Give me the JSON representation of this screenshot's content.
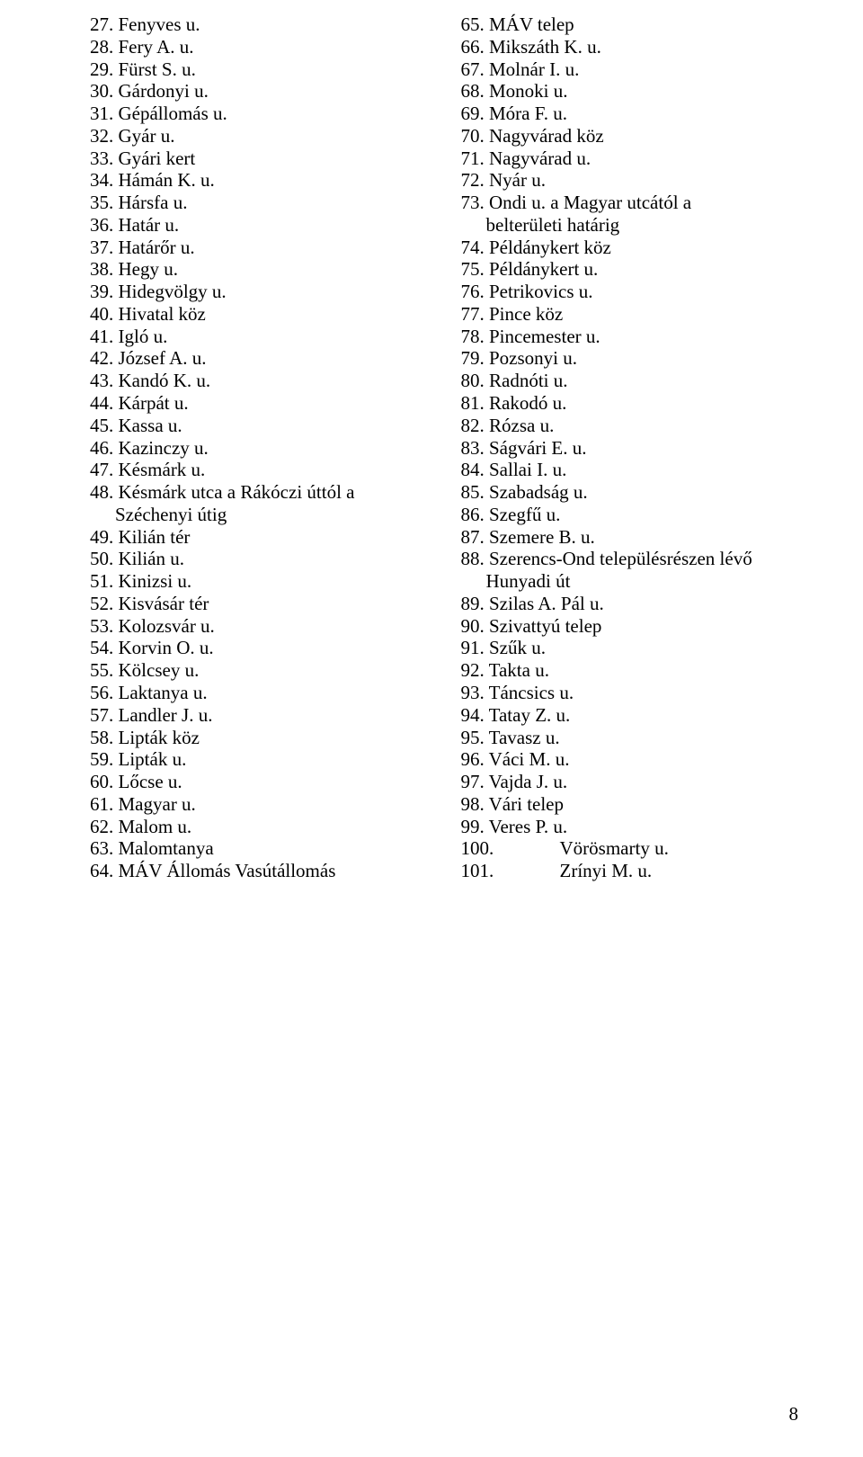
{
  "left_column": [
    {
      "num": "27.",
      "text": "Fenyves u."
    },
    {
      "num": "28.",
      "text": "Fery A. u."
    },
    {
      "num": "29.",
      "text": "Fürst S. u."
    },
    {
      "num": "30.",
      "text": "Gárdonyi u."
    },
    {
      "num": "31.",
      "text": "Gépállomás u."
    },
    {
      "num": "32.",
      "text": "Gyár u."
    },
    {
      "num": "33.",
      "text": "Gyári kert"
    },
    {
      "num": "34.",
      "text": "Hámán K. u."
    },
    {
      "num": "35.",
      "text": "Hársfa u."
    },
    {
      "num": "36.",
      "text": "Határ u."
    },
    {
      "num": "37.",
      "text": "Határőr u."
    },
    {
      "num": "38.",
      "text": "Hegy u."
    },
    {
      "num": "39.",
      "text": "Hidegvölgy u."
    },
    {
      "num": "40.",
      "text": "Hivatal köz"
    },
    {
      "num": "41.",
      "text": "Igló u."
    },
    {
      "num": "42.",
      "text": "József A. u."
    },
    {
      "num": "43.",
      "text": "Kandó K. u."
    },
    {
      "num": "44.",
      "text": "Kárpát u."
    },
    {
      "num": "45.",
      "text": "Kassa u."
    },
    {
      "num": "46.",
      "text": "Kazinczy u."
    },
    {
      "num": "47.",
      "text": "Késmárk u."
    },
    {
      "num": "48.",
      "text": "Késmárk utca a Rákóczi úttól a"
    },
    {
      "num": "",
      "text": "Széchenyi útig",
      "indent": true
    },
    {
      "num": "49.",
      "text": "Kilián tér"
    },
    {
      "num": "50.",
      "text": "Kilián u."
    },
    {
      "num": "51.",
      "text": "Kinizsi u."
    },
    {
      "num": "52.",
      "text": "Kisvásár tér"
    },
    {
      "num": "53.",
      "text": "Kolozsvár u."
    },
    {
      "num": "54.",
      "text": "Korvin O. u."
    },
    {
      "num": "55.",
      "text": "Kölcsey u."
    },
    {
      "num": "56.",
      "text": "Laktanya u."
    },
    {
      "num": "57.",
      "text": "Landler J. u."
    },
    {
      "num": "58.",
      "text": "Lipták köz"
    },
    {
      "num": "59.",
      "text": "Lipták u."
    },
    {
      "num": "60.",
      "text": "Lőcse u."
    },
    {
      "num": "61.",
      "text": "Magyar u."
    },
    {
      "num": "62.",
      "text": "Malom u."
    },
    {
      "num": "63.",
      "text": "Malomtanya"
    },
    {
      "num": "64.",
      "text": "MÁV Állomás Vasútállomás"
    }
  ],
  "right_column": [
    {
      "num": "65.",
      "text": "MÁV telep"
    },
    {
      "num": "66.",
      "text": "Mikszáth K. u."
    },
    {
      "num": "67.",
      "text": "Molnár I. u."
    },
    {
      "num": "68.",
      "text": "Monoki u."
    },
    {
      "num": "69.",
      "text": "Móra F. u."
    },
    {
      "num": "70.",
      "text": "Nagyvárad köz"
    },
    {
      "num": "71.",
      "text": "Nagyvárad u."
    },
    {
      "num": "72.",
      "text": "Nyár u."
    },
    {
      "num": "73.",
      "text": "Ondi u. a Magyar utcától a"
    },
    {
      "num": "",
      "text": "belterületi határig",
      "indent": true
    },
    {
      "num": "74.",
      "text": "Példánykert köz"
    },
    {
      "num": "75.",
      "text": "Példánykert u."
    },
    {
      "num": "76.",
      "text": "Petrikovics u."
    },
    {
      "num": "77.",
      "text": "Pince köz"
    },
    {
      "num": "78.",
      "text": "Pincemester u."
    },
    {
      "num": "79.",
      "text": "Pozsonyi u."
    },
    {
      "num": "80.",
      "text": "Radnóti u."
    },
    {
      "num": "81.",
      "text": "Rakodó u."
    },
    {
      "num": "82.",
      "text": "Rózsa u."
    },
    {
      "num": "83.",
      "text": "Ságvári E. u."
    },
    {
      "num": "84.",
      "text": "Sallai I. u."
    },
    {
      "num": "85.",
      "text": "Szabadság u."
    },
    {
      "num": "86.",
      "text": "Szegfű u."
    },
    {
      "num": "87.",
      "text": "Szemere B. u."
    },
    {
      "num": "88.",
      "text": "Szerencs-Ond településrészen lévő"
    },
    {
      "num": "",
      "text": "Hunyadi út",
      "indent": true
    },
    {
      "num": "89.",
      "text": "Szilas A. Pál u."
    },
    {
      "num": "90.",
      "text": "Szivattyú telep"
    },
    {
      "num": "91.",
      "text": "Szűk u."
    },
    {
      "num": "92.",
      "text": "Takta u."
    },
    {
      "num": "93.",
      "text": "Táncsics u."
    },
    {
      "num": "94.",
      "text": "Tatay Z. u."
    },
    {
      "num": "95.",
      "text": "Tavasz u."
    },
    {
      "num": "96.",
      "text": "Váci M. u."
    },
    {
      "num": "97.",
      "text": "Vajda J. u."
    },
    {
      "num": "98.",
      "text": "Vári telep"
    },
    {
      "num": "99.",
      "text": "Veres P. u."
    },
    {
      "num": "100.",
      "text": "Vörösmarty u.",
      "wide": true
    },
    {
      "num": "101.",
      "text": "Zrínyi M. u.",
      "wide": true
    }
  ],
  "page_number": "8"
}
